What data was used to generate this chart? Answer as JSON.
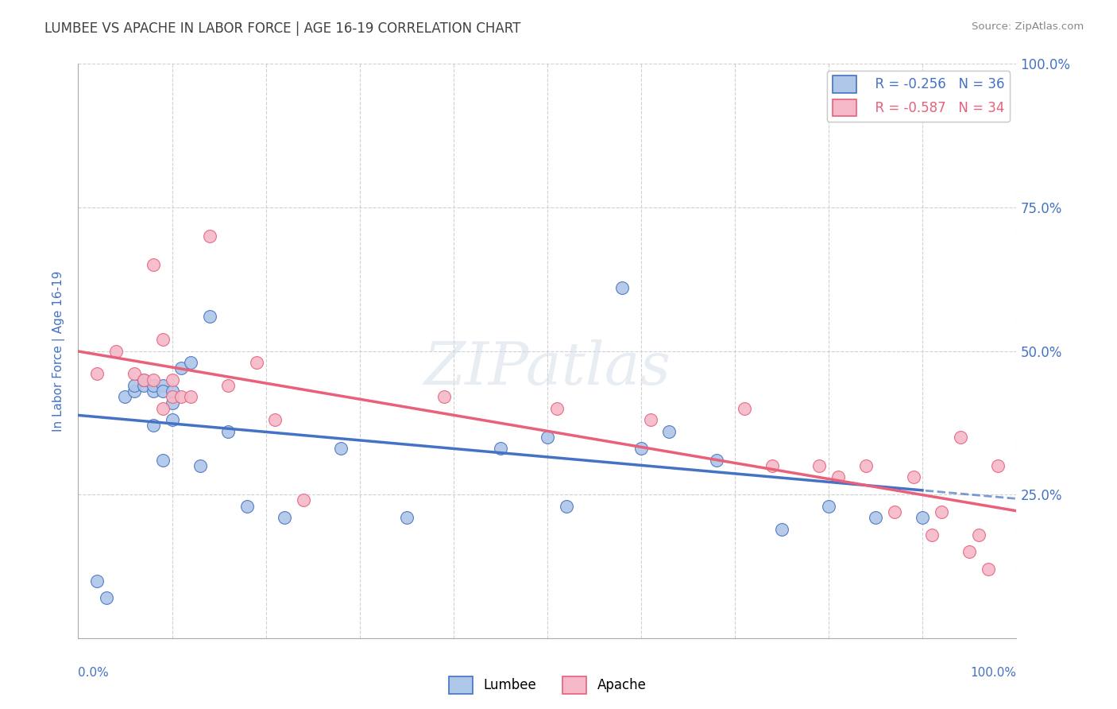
{
  "title": "LUMBEE VS APACHE IN LABOR FORCE | AGE 16-19 CORRELATION CHART",
  "source": "Source: ZipAtlas.com",
  "ylabel": "In Labor Force | Age 16-19",
  "lumbee_R": -0.256,
  "lumbee_N": 36,
  "apache_R": -0.587,
  "apache_N": 34,
  "lumbee_color": "#aec6e8",
  "apache_color": "#f4b8c8",
  "lumbee_line_color": "#4472c4",
  "apache_line_color": "#e8607a",
  "lumbee_x": [
    0.02,
    0.03,
    0.05,
    0.06,
    0.06,
    0.07,
    0.07,
    0.08,
    0.08,
    0.08,
    0.09,
    0.09,
    0.09,
    0.1,
    0.1,
    0.1,
    0.11,
    0.12,
    0.13,
    0.14,
    0.16,
    0.18,
    0.22,
    0.28,
    0.35,
    0.45,
    0.5,
    0.52,
    0.58,
    0.6,
    0.63,
    0.68,
    0.75,
    0.8,
    0.85,
    0.9
  ],
  "lumbee_y": [
    0.1,
    0.07,
    0.42,
    0.43,
    0.44,
    0.44,
    0.45,
    0.37,
    0.43,
    0.44,
    0.44,
    0.43,
    0.31,
    0.38,
    0.41,
    0.43,
    0.47,
    0.48,
    0.3,
    0.56,
    0.36,
    0.23,
    0.21,
    0.33,
    0.21,
    0.33,
    0.35,
    0.23,
    0.61,
    0.33,
    0.36,
    0.31,
    0.19,
    0.23,
    0.21,
    0.21
  ],
  "apache_x": [
    0.02,
    0.04,
    0.06,
    0.07,
    0.08,
    0.08,
    0.09,
    0.09,
    0.1,
    0.1,
    0.11,
    0.12,
    0.14,
    0.16,
    0.19,
    0.21,
    0.24,
    0.39,
    0.51,
    0.61,
    0.71,
    0.74,
    0.79,
    0.81,
    0.84,
    0.87,
    0.89,
    0.91,
    0.92,
    0.94,
    0.95,
    0.96,
    0.97,
    0.98
  ],
  "apache_y": [
    0.46,
    0.5,
    0.46,
    0.45,
    0.65,
    0.45,
    0.52,
    0.4,
    0.42,
    0.45,
    0.42,
    0.42,
    0.7,
    0.44,
    0.48,
    0.38,
    0.24,
    0.42,
    0.4,
    0.38,
    0.4,
    0.3,
    0.3,
    0.28,
    0.3,
    0.22,
    0.28,
    0.18,
    0.22,
    0.35,
    0.15,
    0.18,
    0.12,
    0.3
  ],
  "xlim": [
    0.0,
    1.0
  ],
  "ylim": [
    0.0,
    1.0
  ],
  "yticks": [
    0.0,
    0.25,
    0.5,
    0.75,
    1.0
  ],
  "ytick_labels": [
    "",
    "25.0%",
    "50.0%",
    "75.0%",
    "100.0%"
  ],
  "background_color": "#ffffff",
  "grid_color": "#cccccc",
  "watermark": "ZIPatlas",
  "title_color": "#404040",
  "tick_color": "#4472c4",
  "title_fontsize": 12,
  "source_color": "#888888"
}
